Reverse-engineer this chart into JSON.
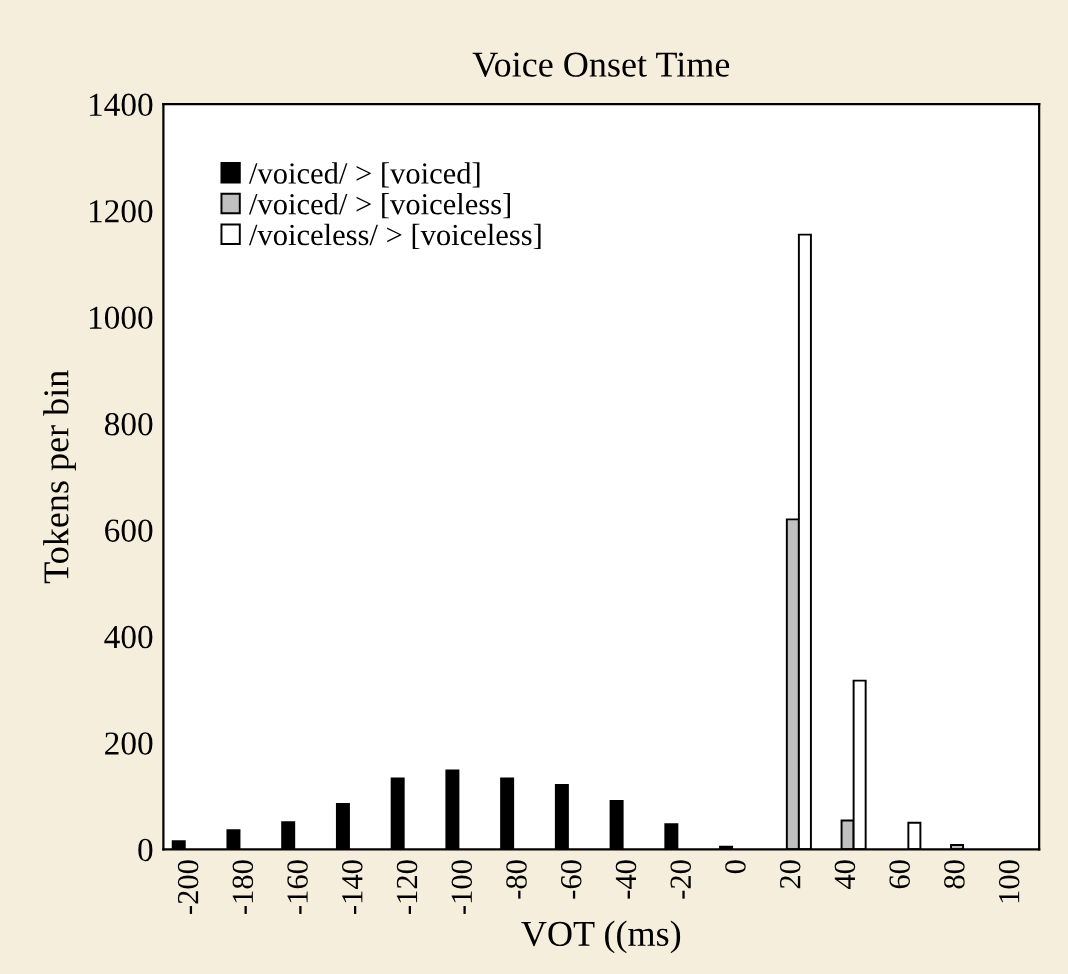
{
  "chart_data": {
    "type": "bar",
    "title": "Voice Onset Time",
    "xlabel": "VOT ((ms)",
    "ylabel": "Tokens per bin",
    "categories": [
      "-200",
      "-180",
      "-160",
      "-140",
      "-120",
      "-100",
      "-80",
      "-60",
      "-40",
      "-20",
      "0",
      "20",
      "40",
      "60",
      "80",
      "100"
    ],
    "series": [
      {
        "name": "/voiced/ > [voiced]",
        "color": "#000000",
        "values": [
          15,
          36,
          51,
          85,
          133,
          148,
          133,
          121,
          91,
          47,
          5,
          null,
          null,
          null,
          null,
          null
        ]
      },
      {
        "name": "/voiced/ > [voiceless]",
        "color": "#c0c0c0",
        "values": [
          null,
          null,
          null,
          null,
          null,
          null,
          null,
          null,
          null,
          null,
          null,
          620,
          54,
          null,
          8,
          null
        ]
      },
      {
        "name": "/voiceless/ > [voiceless]",
        "color": "#ffffff",
        "values": [
          null,
          null,
          null,
          null,
          null,
          null,
          null,
          null,
          null,
          null,
          null,
          1155,
          317,
          50,
          null,
          null
        ]
      }
    ],
    "ylim": [
      0,
      1400
    ],
    "yticks": [
      0,
      200,
      400,
      600,
      800,
      1000,
      1200,
      1400
    ],
    "grid": false,
    "legend": "top left"
  }
}
